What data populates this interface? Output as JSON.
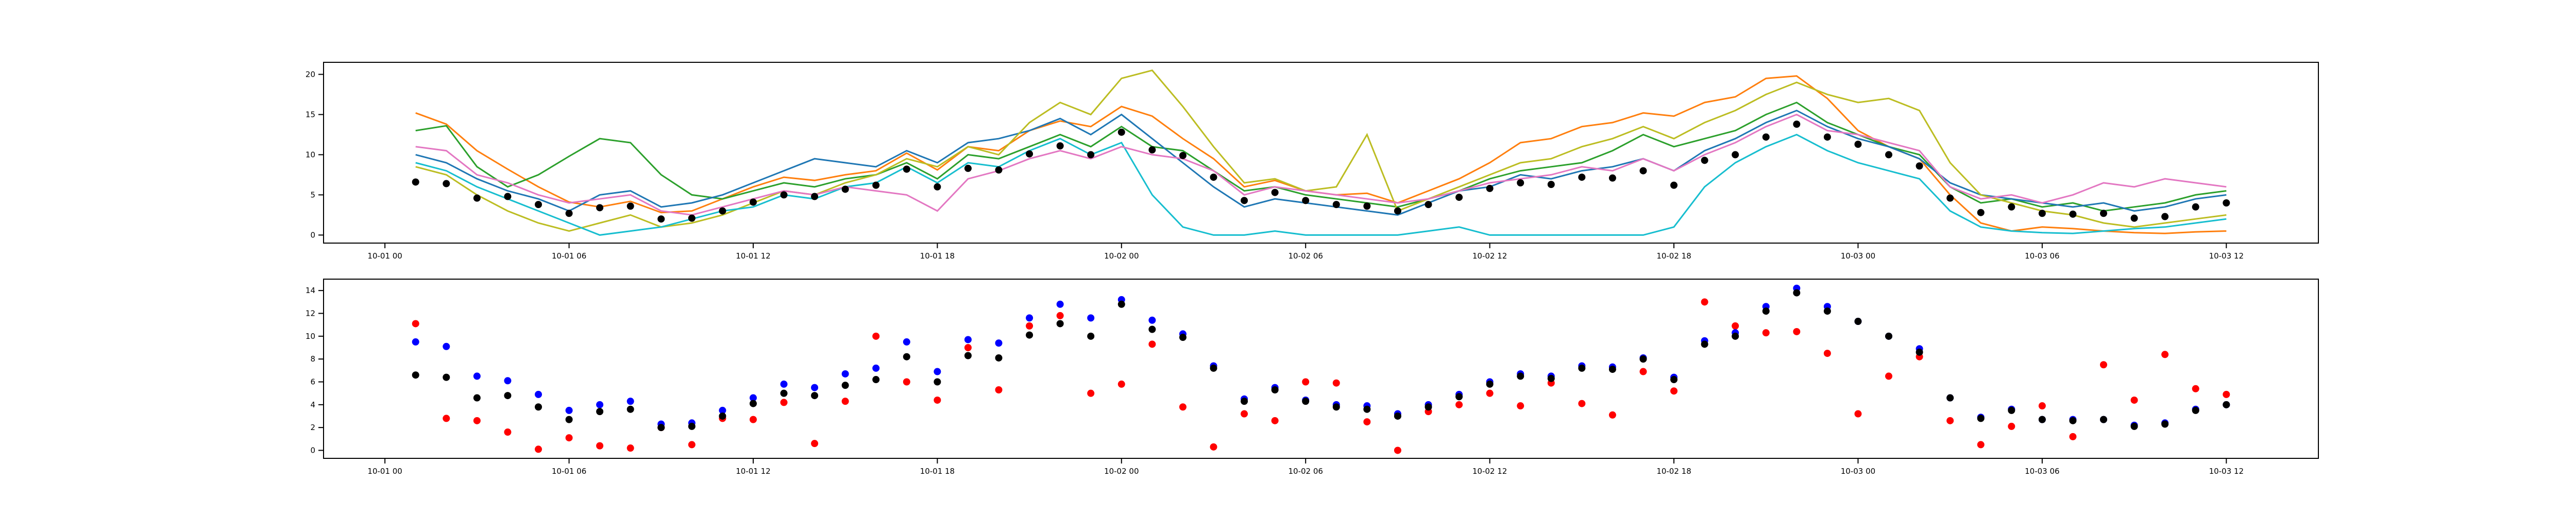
{
  "chart_data": [
    {
      "type": "line",
      "x": [
        "10-01 01",
        "10-01 02",
        "10-01 03",
        "10-01 04",
        "10-01 05",
        "10-01 06",
        "10-01 07",
        "10-01 08",
        "10-01 09",
        "10-01 10",
        "10-01 11",
        "10-01 12",
        "10-01 13",
        "10-01 14",
        "10-01 15",
        "10-01 16",
        "10-01 17",
        "10-01 18",
        "10-01 19",
        "10-01 20",
        "10-01 21",
        "10-01 22",
        "10-01 23",
        "10-02 00",
        "10-02 01",
        "10-02 02",
        "10-02 03",
        "10-02 04",
        "10-02 05",
        "10-02 06",
        "10-02 07",
        "10-02 08",
        "10-02 09",
        "10-02 10",
        "10-02 11",
        "10-02 12",
        "10-02 13",
        "10-02 14",
        "10-02 15",
        "10-02 16",
        "10-02 17",
        "10-02 18",
        "10-02 19",
        "10-02 20",
        "10-02 21",
        "10-02 22",
        "10-02 23",
        "10-03 00",
        "10-03 01",
        "10-03 02",
        "10-03 03",
        "10-03 04",
        "10-03 05",
        "10-03 06",
        "10-03 07",
        "10-03 08",
        "10-03 09",
        "10-03 10",
        "10-03 11",
        "10-03 12"
      ],
      "series": [
        {
          "color": "#ff7f0e",
          "values": [
            15.2,
            13.8,
            10.5,
            8.2,
            6.0,
            4.1,
            3.5,
            4.2,
            2.8,
            3.0,
            4.5,
            6.0,
            7.2,
            6.8,
            7.5,
            8.0,
            10.2,
            8.1,
            11.0,
            10.5,
            13.0,
            14.2,
            13.5,
            16.0,
            14.8,
            12.0,
            9.5,
            6.0,
            6.8,
            5.5,
            5.0,
            5.2,
            4.0,
            5.5,
            7.0,
            9.0,
            11.5,
            12.0,
            13.5,
            14.0,
            15.2,
            14.8,
            16.5,
            17.2,
            19.5,
            19.8,
            17.0,
            13.0,
            11.0,
            9.5,
            5.0,
            1.5,
            0.5,
            1.0,
            0.8,
            0.5,
            0.3,
            0.2,
            0.4,
            0.5
          ]
        },
        {
          "color": "#2ca02c",
          "values": [
            13.0,
            13.6,
            8.5,
            6.0,
            7.5,
            9.8,
            12.0,
            11.5,
            7.5,
            5.0,
            4.5,
            5.5,
            6.5,
            6.0,
            7.0,
            7.5,
            9.0,
            7.0,
            10.0,
            9.5,
            11.0,
            12.5,
            11.0,
            13.5,
            11.0,
            10.5,
            8.0,
            5.5,
            6.0,
            5.0,
            4.5,
            4.0,
            3.5,
            4.5,
            5.5,
            7.0,
            8.0,
            8.5,
            9.0,
            10.5,
            12.5,
            11.0,
            12.0,
            13.0,
            15.0,
            16.5,
            14.0,
            12.5,
            11.0,
            10.0,
            6.0,
            4.0,
            4.5,
            3.5,
            4.0,
            3.0,
            3.5,
            4.0,
            5.0,
            5.5
          ]
        },
        {
          "color": "#1f77b4",
          "values": [
            10.0,
            9.0,
            7.0,
            5.5,
            4.5,
            3.0,
            5.0,
            5.5,
            3.5,
            4.0,
            5.0,
            6.5,
            8.0,
            9.5,
            9.0,
            8.5,
            10.5,
            9.0,
            11.5,
            12.0,
            13.0,
            14.5,
            12.5,
            15.0,
            12.0,
            9.0,
            6.0,
            3.5,
            4.5,
            4.0,
            3.5,
            3.0,
            2.5,
            4.0,
            5.5,
            6.0,
            7.5,
            7.0,
            8.0,
            8.5,
            9.5,
            8.0,
            10.5,
            12.0,
            14.0,
            15.5,
            13.5,
            12.0,
            11.0,
            9.5,
            6.5,
            5.0,
            4.5,
            4.0,
            3.5,
            4.0,
            3.0,
            3.5,
            4.5,
            5.0
          ]
        },
        {
          "color": "#bcbd22",
          "values": [
            8.5,
            7.5,
            5.0,
            3.0,
            1.5,
            0.5,
            1.5,
            2.5,
            1.0,
            1.5,
            2.5,
            4.0,
            5.5,
            5.0,
            6.5,
            7.5,
            9.5,
            8.5,
            11.0,
            10.0,
            14.0,
            16.5,
            15.0,
            19.5,
            20.5,
            16.0,
            11.0,
            6.5,
            7.0,
            5.5,
            6.0,
            12.5,
            3.0,
            4.5,
            6.0,
            7.5,
            9.0,
            9.5,
            11.0,
            12.0,
            13.5,
            12.0,
            14.0,
            15.5,
            17.5,
            19.0,
            17.5,
            16.5,
            17.0,
            15.5,
            9.0,
            5.0,
            4.0,
            3.0,
            2.5,
            1.5,
            1.0,
            1.5,
            2.0,
            2.5
          ]
        },
        {
          "color": "#17becf",
          "values": [
            9.0,
            8.0,
            6.0,
            4.5,
            3.0,
            1.5,
            0.0,
            0.5,
            1.0,
            2.0,
            3.0,
            3.5,
            5.0,
            4.5,
            6.0,
            6.5,
            8.5,
            6.5,
            9.0,
            8.5,
            10.5,
            12.0,
            10.0,
            11.5,
            5.0,
            1.0,
            0.0,
            0.0,
            0.5,
            0.0,
            0.0,
            0.0,
            0.0,
            0.5,
            1.0,
            0.0,
            0.0,
            0.0,
            0.0,
            0.0,
            0.0,
            1.0,
            6.0,
            9.0,
            11.0,
            12.5,
            10.5,
            9.0,
            8.0,
            7.0,
            3.0,
            1.0,
            0.5,
            0.3,
            0.2,
            0.5,
            0.8,
            1.0,
            1.5,
            2.0
          ]
        },
        {
          "color": "#e377c2",
          "values": [
            11.0,
            10.5,
            7.5,
            6.5,
            5.0,
            4.0,
            4.5,
            5.0,
            3.0,
            2.5,
            3.5,
            4.5,
            5.5,
            5.0,
            6.0,
            5.5,
            5.0,
            3.0,
            7.0,
            8.0,
            9.5,
            10.5,
            9.5,
            11.0,
            10.0,
            9.5,
            8.0,
            5.0,
            6.0,
            5.5,
            5.0,
            4.5,
            4.0,
            4.5,
            5.5,
            6.5,
            7.0,
            7.5,
            8.5,
            8.0,
            9.5,
            8.0,
            10.0,
            11.5,
            13.5,
            15.0,
            13.0,
            12.5,
            11.5,
            10.5,
            6.0,
            4.5,
            5.0,
            4.0,
            5.0,
            6.5,
            6.0,
            7.0,
            6.5,
            6.0
          ]
        },
        {
          "color": "#000000",
          "style": "dots",
          "values": [
            6.6,
            6.4,
            4.6,
            4.8,
            3.8,
            2.7,
            3.4,
            3.6,
            2.0,
            2.1,
            3.0,
            4.1,
            5.0,
            4.8,
            5.7,
            6.2,
            8.2,
            6.0,
            8.3,
            8.1,
            10.1,
            11.1,
            10.0,
            12.8,
            10.6,
            9.9,
            7.2,
            4.3,
            5.3,
            4.3,
            3.8,
            3.6,
            3.0,
            3.8,
            4.7,
            5.8,
            6.5,
            6.3,
            7.2,
            7.1,
            8.0,
            6.2,
            9.3,
            10.0,
            12.2,
            13.8,
            12.2,
            11.3,
            10.0,
            8.6,
            4.6,
            2.8,
            3.5,
            2.7,
            2.6,
            2.7,
            2.1,
            2.3,
            3.5,
            4.0
          ]
        }
      ],
      "xlim": [
        "09-30 22",
        "10-03 15"
      ],
      "xticks": [
        "10-01 00",
        "10-01 06",
        "10-01 12",
        "10-01 18",
        "10-02 00",
        "10-02 06",
        "10-02 12",
        "10-02 18",
        "10-03 00",
        "10-03 06",
        "10-03 12"
      ],
      "ylim": [
        -1,
        21.5
      ],
      "yticks": [
        0,
        5,
        10,
        15,
        20
      ]
    },
    {
      "type": "scatter",
      "x": [
        "10-01 01",
        "10-01 02",
        "10-01 03",
        "10-01 04",
        "10-01 05",
        "10-01 06",
        "10-01 07",
        "10-01 08",
        "10-01 09",
        "10-01 10",
        "10-01 11",
        "10-01 12",
        "10-01 13",
        "10-01 14",
        "10-01 15",
        "10-01 16",
        "10-01 17",
        "10-01 18",
        "10-01 19",
        "10-01 20",
        "10-01 21",
        "10-01 22",
        "10-01 23",
        "10-02 00",
        "10-02 01",
        "10-02 02",
        "10-02 03",
        "10-02 04",
        "10-02 05",
        "10-02 06",
        "10-02 07",
        "10-02 08",
        "10-02 09",
        "10-02 10",
        "10-02 11",
        "10-02 12",
        "10-02 13",
        "10-02 14",
        "10-02 15",
        "10-02 16",
        "10-02 17",
        "10-02 18",
        "10-02 19",
        "10-02 20",
        "10-02 21",
        "10-02 22",
        "10-02 23",
        "10-03 00",
        "10-03 01",
        "10-03 02",
        "10-03 03",
        "10-03 04",
        "10-03 05",
        "10-03 06",
        "10-03 07",
        "10-03 08",
        "10-03 09",
        "10-03 10",
        "10-03 11",
        "10-03 12"
      ],
      "series": [
        {
          "color": "#ff0000",
          "values": [
            11.1,
            2.8,
            2.6,
            1.6,
            0.1,
            1.1,
            0.4,
            0.2,
            2.0,
            0.5,
            2.8,
            2.7,
            4.2,
            0.6,
            4.3,
            10.0,
            6.0,
            4.4,
            9.0,
            5.3,
            10.9,
            11.8,
            5.0,
            5.8,
            9.3,
            3.8,
            0.3,
            3.2,
            2.6,
            6.0,
            5.9,
            2.5,
            0.0,
            3.4,
            4.0,
            5.0,
            3.9,
            5.9,
            4.1,
            3.1,
            6.9,
            5.2,
            13.0,
            10.9,
            10.3,
            10.4,
            8.5,
            3.2,
            6.5,
            8.2,
            2.6,
            0.5,
            2.1,
            3.9,
            1.2,
            7.5,
            4.4,
            8.4,
            5.4,
            4.9
          ]
        },
        {
          "color": "#0000ff",
          "values": [
            9.5,
            9.1,
            6.5,
            6.1,
            4.9,
            3.5,
            4.0,
            4.3,
            2.3,
            2.4,
            3.5,
            4.6,
            5.8,
            5.5,
            6.7,
            7.2,
            9.5,
            6.9,
            9.7,
            9.4,
            11.6,
            12.8,
            11.6,
            13.2,
            11.4,
            10.2,
            7.4,
            4.5,
            5.5,
            4.4,
            4.0,
            3.9,
            3.2,
            4.0,
            4.9,
            6.0,
            6.7,
            6.5,
            7.4,
            7.3,
            8.1,
            6.4,
            9.6,
            10.3,
            12.6,
            14.2,
            12.6,
            11.3,
            10.0,
            8.9,
            4.6,
            2.9,
            3.6,
            2.7,
            2.7,
            2.7,
            2.2,
            2.4,
            3.6,
            4.0
          ]
        },
        {
          "color": "#000000",
          "values": [
            6.6,
            6.4,
            4.6,
            4.8,
            3.8,
            2.7,
            3.4,
            3.6,
            2.0,
            2.1,
            3.0,
            4.1,
            5.0,
            4.8,
            5.7,
            6.2,
            8.2,
            6.0,
            8.3,
            8.1,
            10.1,
            11.1,
            10.0,
            12.8,
            10.6,
            9.9,
            7.2,
            4.3,
            5.3,
            4.3,
            3.8,
            3.6,
            3.0,
            3.8,
            4.7,
            5.8,
            6.5,
            6.3,
            7.2,
            7.1,
            8.0,
            6.2,
            9.3,
            10.0,
            12.2,
            13.8,
            12.2,
            11.3,
            10.0,
            8.6,
            4.6,
            2.8,
            3.5,
            2.7,
            2.6,
            2.7,
            2.1,
            2.3,
            3.5,
            4.0
          ]
        }
      ],
      "xlim": [
        "09-30 22",
        "10-03 15"
      ],
      "xticks": [
        "10-01 00",
        "10-01 06",
        "10-01 12",
        "10-01 18",
        "10-02 00",
        "10-02 06",
        "10-02 12",
        "10-02 18",
        "10-03 00",
        "10-03 06",
        "10-03 12"
      ],
      "ylim": [
        -0.7,
        15
      ],
      "yticks": [
        0,
        2,
        4,
        6,
        8,
        10,
        12,
        14
      ]
    }
  ]
}
